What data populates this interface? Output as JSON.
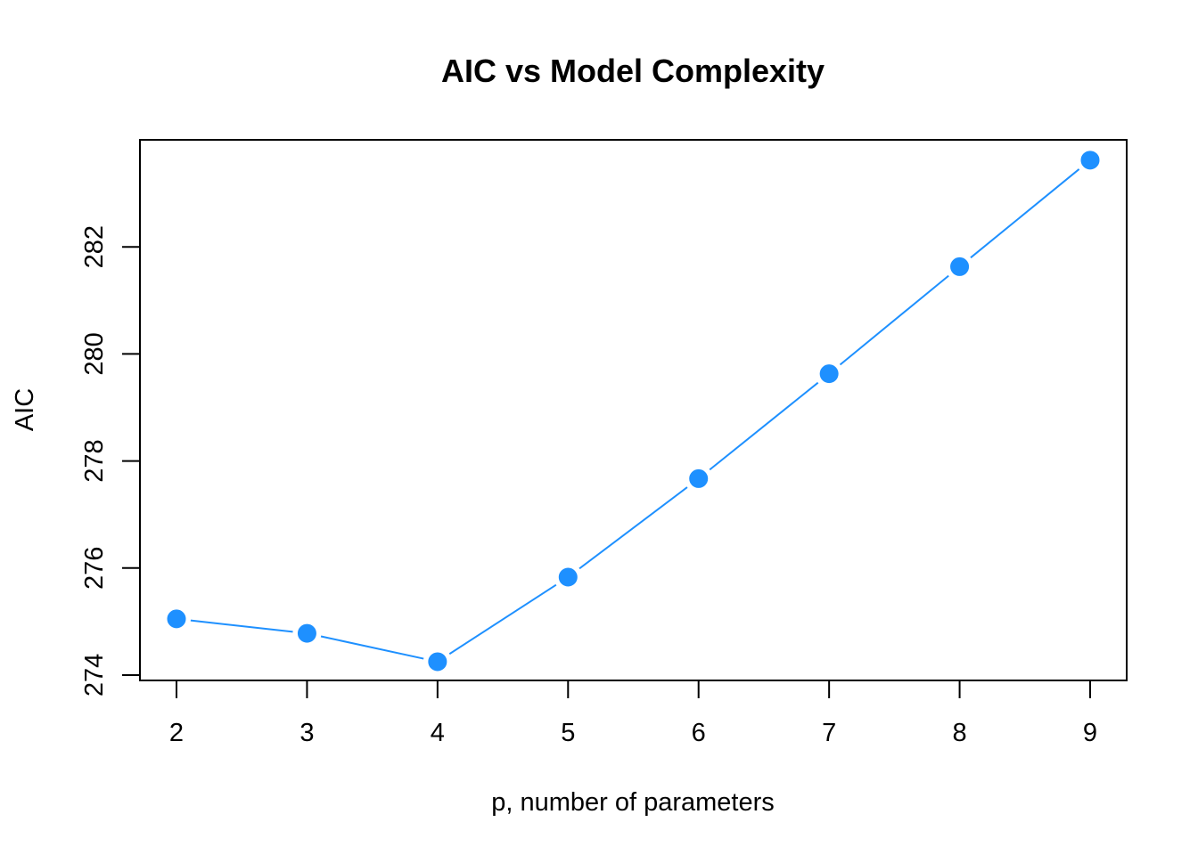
{
  "chart_data": {
    "type": "line",
    "title": "AIC vs Model Complexity",
    "xlabel": "p, number of parameters",
    "ylabel": "AIC",
    "x": [
      2,
      3,
      4,
      5,
      6,
      7,
      8,
      9
    ],
    "series": [
      {
        "values": [
          275.05,
          274.78,
          274.25,
          275.83,
          277.67,
          279.63,
          281.63,
          283.62
        ],
        "color": "#1E90FF"
      }
    ],
    "xticks": [
      2,
      3,
      4,
      5,
      6,
      7,
      8,
      9
    ],
    "yticks": [
      274,
      276,
      278,
      280,
      282
    ],
    "xlim": [
      1.72,
      9.28
    ],
    "ylim": [
      273.9,
      284.0
    ],
    "grid": false,
    "legend": "none",
    "marker": "filled-circle-white-edge"
  }
}
